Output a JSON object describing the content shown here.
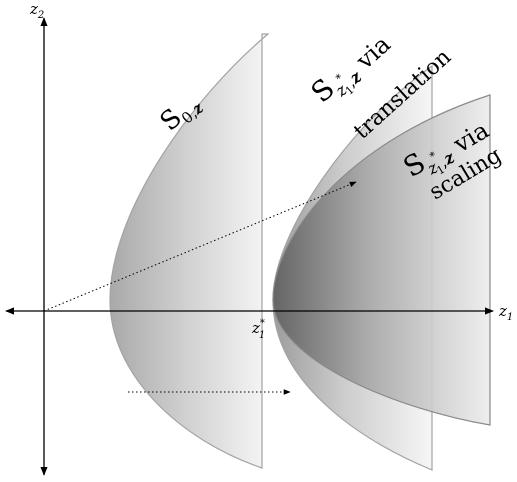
{
  "axes": {
    "z1_label": "z",
    "z1_sub": "1",
    "z2_label": "z",
    "z2_sub": "2",
    "z1_star_label": "z",
    "z1_star_sub": "1",
    "z1_star_sup": "*"
  },
  "sets": {
    "s0": {
      "symbol": "S",
      "sub": "0,",
      "sub_bold": "z"
    },
    "translation": {
      "symbol": "S",
      "sub": "z",
      "sub_sub": "1",
      "sub_sup": "*",
      "sub_rest": ",",
      "sub_bold": "z",
      "via": " via",
      "method": "translation"
    },
    "scaling": {
      "symbol": "S",
      "sub": "z",
      "sub_sub": "1",
      "sub_sup": "*",
      "sub_rest": ",",
      "sub_bold": "z",
      "via": " via",
      "method": "scaling"
    }
  },
  "colors": {
    "shape_light": "#f4f4f4",
    "shape_mid": "#b8b8b8",
    "shape_dark": "#6f6f6f",
    "edge": "#9a9a9a",
    "axis": "#000000"
  }
}
